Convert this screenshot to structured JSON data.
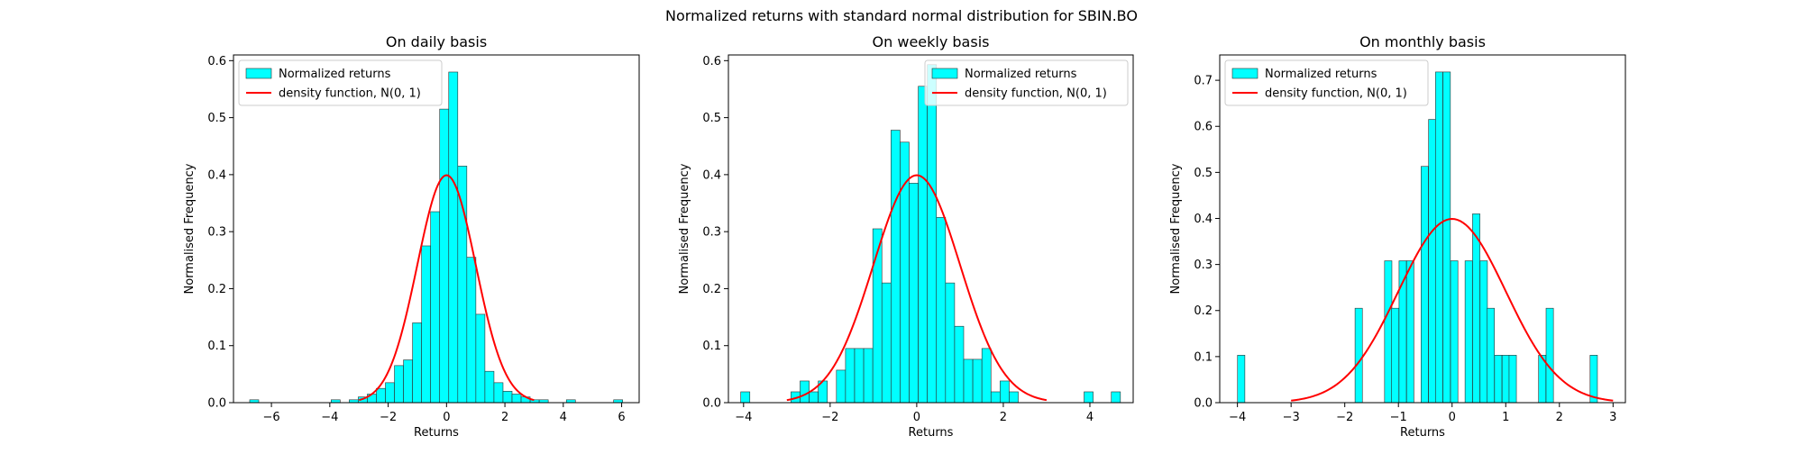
{
  "figure": {
    "suptitle": "Normalized returns with standard normal distribution for SBIN.BO"
  },
  "chart_data": [
    {
      "type": "bar",
      "title": "On daily basis",
      "xlabel": "Returns",
      "ylabel": "Normalised Frequency",
      "xlim": [
        -7.3,
        6.6
      ],
      "ylim": [
        0,
        0.61
      ],
      "xticks": [
        -6,
        -4,
        -2,
        0,
        2,
        4,
        6
      ],
      "xtick_labels": [
        "−6",
        "−4",
        "−2",
        "0",
        "2",
        "4",
        "6"
      ],
      "yticks": [
        0,
        0.1,
        0.2,
        0.3,
        0.4,
        0.5,
        0.6
      ],
      "ytick_labels": [
        "0.0",
        "0.1",
        "0.2",
        "0.3",
        "0.4",
        "0.5",
        "0.6"
      ],
      "legend": {
        "location": "upper left",
        "entries": [
          "Normalized returns",
          "density function, N(0, 1)"
        ]
      },
      "bar_color": "#00ffff",
      "line_color": "#ff0000",
      "bin_width": 0.31,
      "bins": [
        [
          -6.59,
          0.005
        ],
        [
          -3.8,
          0.005
        ],
        [
          -3.18,
          0.005
        ],
        [
          -2.87,
          0.01
        ],
        [
          -2.56,
          0.015
        ],
        [
          -2.25,
          0.025
        ],
        [
          -1.94,
          0.035
        ],
        [
          -1.63,
          0.065
        ],
        [
          -1.32,
          0.075
        ],
        [
          -1.01,
          0.14
        ],
        [
          -0.7,
          0.275
        ],
        [
          -0.39,
          0.335
        ],
        [
          -0.08,
          0.515
        ],
        [
          0.23,
          0.58
        ],
        [
          0.54,
          0.415
        ],
        [
          0.85,
          0.255
        ],
        [
          1.16,
          0.155
        ],
        [
          1.47,
          0.055
        ],
        [
          1.78,
          0.035
        ],
        [
          2.09,
          0.02
        ],
        [
          2.4,
          0.015
        ],
        [
          2.71,
          0.01
        ],
        [
          3.02,
          0.005
        ],
        [
          3.33,
          0.005
        ],
        [
          4.26,
          0.005
        ],
        [
          5.88,
          0.005
        ]
      ],
      "density": {
        "name": "density function, N(0, 1)",
        "x_range": [
          -3,
          3
        ],
        "mean": 0,
        "std": 1
      }
    },
    {
      "type": "bar",
      "title": "On weekly basis",
      "xlabel": "Returns",
      "ylabel": "Normalised Frequency",
      "xlim": [
        -4.35,
        5.0
      ],
      "ylim": [
        0,
        0.61
      ],
      "xticks": [
        -4,
        -2,
        0,
        2,
        4
      ],
      "xtick_labels": [
        "−4",
        "−2",
        "0",
        "2",
        "4"
      ],
      "yticks": [
        0,
        0.1,
        0.2,
        0.3,
        0.4,
        0.5,
        0.6
      ],
      "ytick_labels": [
        "0.0",
        "0.1",
        "0.2",
        "0.3",
        "0.4",
        "0.5",
        "0.6"
      ],
      "legend": {
        "location": "upper right",
        "entries": [
          "Normalized returns",
          "density function, N(0, 1)"
        ]
      },
      "bar_color": "#00ffff",
      "line_color": "#ff0000",
      "bin_width": 0.2097,
      "bins": [
        [
          -3.96,
          0.019
        ],
        [
          -2.8,
          0.019
        ],
        [
          -2.59,
          0.038
        ],
        [
          -2.38,
          0.019
        ],
        [
          -2.17,
          0.038
        ],
        [
          -1.75,
          0.057
        ],
        [
          -1.54,
          0.095
        ],
        [
          -1.33,
          0.095
        ],
        [
          -1.12,
          0.095
        ],
        [
          -0.91,
          0.305
        ],
        [
          -0.7,
          0.21
        ],
        [
          -0.49,
          0.478
        ],
        [
          -0.28,
          0.457
        ],
        [
          -0.07,
          0.385
        ],
        [
          0.14,
          0.555
        ],
        [
          0.35,
          0.593
        ],
        [
          0.56,
          0.325
        ],
        [
          0.77,
          0.21
        ],
        [
          0.98,
          0.134
        ],
        [
          1.19,
          0.076
        ],
        [
          1.4,
          0.076
        ],
        [
          1.61,
          0.095
        ],
        [
          1.82,
          0.019
        ],
        [
          2.03,
          0.038
        ],
        [
          2.24,
          0.019
        ],
        [
          3.97,
          0.019
        ],
        [
          4.6,
          0.019
        ]
      ],
      "density": {
        "name": "density function, N(0, 1)",
        "x_range": [
          -3,
          3
        ],
        "mean": 0,
        "std": 1
      }
    },
    {
      "type": "bar",
      "title": "On monthly basis",
      "xlabel": "Returns",
      "ylabel": "Normalised Frequency",
      "xlim": [
        -4.33,
        3.23
      ],
      "ylim": [
        0,
        0.755
      ],
      "xticks": [
        -4,
        -3,
        -2,
        -1,
        0,
        1,
        2,
        3
      ],
      "xtick_labels": [
        "−4",
        "−3",
        "−2",
        "−1",
        "0",
        "1",
        "2",
        "3"
      ],
      "yticks": [
        0,
        0.1,
        0.2,
        0.3,
        0.4,
        0.5,
        0.6,
        0.7
      ],
      "ytick_labels": [
        "0.0",
        "0.1",
        "0.2",
        "0.3",
        "0.4",
        "0.5",
        "0.6",
        "0.7"
      ],
      "legend": {
        "location": "upper left",
        "entries": [
          "Normalized returns",
          "density function, N(0, 1)"
        ]
      },
      "bar_color": "#00ffff",
      "line_color": "#ff0000",
      "bin_width": 0.1367,
      "bins": [
        [
          -3.93,
          0.103
        ],
        [
          -1.74,
          0.205
        ],
        [
          -1.19,
          0.308
        ],
        [
          -1.06,
          0.205
        ],
        [
          -0.92,
          0.308
        ],
        [
          -0.78,
          0.308
        ],
        [
          -0.51,
          0.513
        ],
        [
          -0.37,
          0.615
        ],
        [
          -0.24,
          0.718
        ],
        [
          -0.1,
          0.718
        ],
        [
          0.04,
          0.308
        ],
        [
          0.31,
          0.308
        ],
        [
          0.45,
          0.41
        ],
        [
          0.59,
          0.308
        ],
        [
          0.72,
          0.205
        ],
        [
          0.86,
          0.103
        ],
        [
          1.0,
          0.103
        ],
        [
          1.13,
          0.103
        ],
        [
          1.68,
          0.103
        ],
        [
          1.82,
          0.205
        ],
        [
          2.64,
          0.103
        ]
      ],
      "density": {
        "name": "density function, N(0, 1)",
        "x_range": [
          -3,
          3
        ],
        "mean": 0,
        "std": 1
      }
    }
  ]
}
